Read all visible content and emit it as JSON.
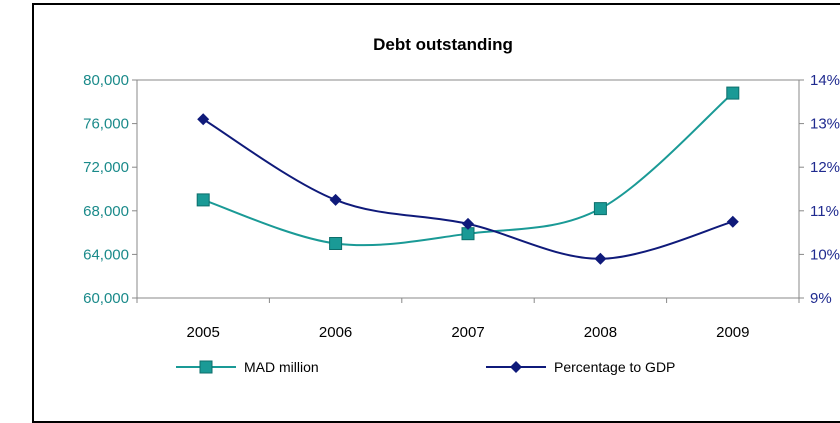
{
  "chart_data": {
    "type": "line",
    "title": "Debt outstanding",
    "categories": [
      "2005",
      "2006",
      "2007",
      "2008",
      "2009"
    ],
    "y_left": {
      "ylim": [
        60000,
        80000
      ],
      "ticks": [
        "60,000",
        "64,000",
        "68,000",
        "72,000",
        "76,000",
        "80,000"
      ]
    },
    "y_right": {
      "ylim": [
        9,
        14
      ],
      "ticks": [
        "9%",
        "10%",
        "11%",
        "12%",
        "13%",
        "14%"
      ]
    },
    "series": [
      {
        "name": "MAD million",
        "axis": "left",
        "color": "#1a9a96",
        "marker": "square",
        "values": [
          69000,
          65000,
          65900,
          68200,
          78800
        ]
      },
      {
        "name": "Percentage to GDP",
        "axis": "right",
        "color": "#0f1a7a",
        "marker": "diamond",
        "values": [
          13.1,
          11.25,
          10.7,
          9.9,
          10.75
        ]
      }
    ],
    "grid": false,
    "legend_position": "bottom"
  }
}
